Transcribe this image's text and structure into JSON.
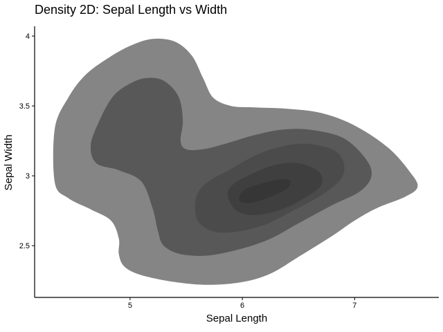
{
  "chart_data": {
    "type": "density2d",
    "title": "Density 2D: Sepal Length vs Width",
    "xlabel": "Sepal Length",
    "ylabel": "Sepal Width",
    "xlim": [
      4.15,
      7.75
    ],
    "ylim": [
      2.13,
      4.07
    ],
    "x_ticks": [
      5,
      6,
      7
    ],
    "y_ticks": [
      2.5,
      3,
      3.5,
      4
    ],
    "grid": false,
    "legend": "none",
    "fill_colors": [
      "#858585",
      "#585858",
      "#4b4b4b",
      "#3f3f3f",
      "#363636"
    ],
    "levels": [
      {
        "level": 1,
        "color": "#858585",
        "points": [
          [
            4.33,
            3.34
          ],
          [
            4.45,
            3.56
          ],
          [
            4.6,
            3.72
          ],
          [
            4.8,
            3.84
          ],
          [
            5.0,
            3.93
          ],
          [
            5.2,
            3.98
          ],
          [
            5.4,
            3.96
          ],
          [
            5.55,
            3.86
          ],
          [
            5.65,
            3.7
          ],
          [
            5.74,
            3.56
          ],
          [
            5.9,
            3.5
          ],
          [
            6.1,
            3.49
          ],
          [
            6.4,
            3.48
          ],
          [
            6.7,
            3.45
          ],
          [
            7.0,
            3.36
          ],
          [
            7.3,
            3.2
          ],
          [
            7.5,
            3.02
          ],
          [
            7.56,
            2.92
          ],
          [
            7.45,
            2.85
          ],
          [
            7.2,
            2.77
          ],
          [
            7.0,
            2.68
          ],
          [
            6.8,
            2.57
          ],
          [
            6.5,
            2.42
          ],
          [
            6.25,
            2.3
          ],
          [
            6.0,
            2.24
          ],
          [
            5.7,
            2.22
          ],
          [
            5.4,
            2.24
          ],
          [
            5.1,
            2.29
          ],
          [
            4.95,
            2.35
          ],
          [
            4.9,
            2.44
          ],
          [
            4.9,
            2.55
          ],
          [
            4.83,
            2.68
          ],
          [
            4.65,
            2.76
          ],
          [
            4.45,
            2.84
          ],
          [
            4.33,
            2.95
          ]
        ]
      },
      {
        "level": 2,
        "color": "#585858",
        "points": [
          [
            4.65,
            3.22
          ],
          [
            4.73,
            3.4
          ],
          [
            4.85,
            3.57
          ],
          [
            5.0,
            3.66
          ],
          [
            5.15,
            3.7
          ],
          [
            5.3,
            3.68
          ],
          [
            5.43,
            3.57
          ],
          [
            5.47,
            3.4
          ],
          [
            5.45,
            3.25
          ],
          [
            5.5,
            3.19
          ],
          [
            5.65,
            3.19
          ],
          [
            5.85,
            3.23
          ],
          [
            6.1,
            3.29
          ],
          [
            6.35,
            3.33
          ],
          [
            6.6,
            3.33
          ],
          [
            6.9,
            3.27
          ],
          [
            7.1,
            3.12
          ],
          [
            7.15,
            3.0
          ],
          [
            7.05,
            2.89
          ],
          [
            6.8,
            2.79
          ],
          [
            6.5,
            2.66
          ],
          [
            6.25,
            2.55
          ],
          [
            6.0,
            2.48
          ],
          [
            5.7,
            2.43
          ],
          [
            5.45,
            2.44
          ],
          [
            5.3,
            2.5
          ],
          [
            5.25,
            2.6
          ],
          [
            5.2,
            2.77
          ],
          [
            5.1,
            2.96
          ],
          [
            4.9,
            3.04
          ],
          [
            4.7,
            3.09
          ]
        ]
      },
      {
        "level": 3,
        "color": "#4b4b4b",
        "points": [
          [
            5.58,
            2.75
          ],
          [
            5.6,
            2.87
          ],
          [
            5.7,
            2.96
          ],
          [
            5.9,
            3.05
          ],
          [
            6.1,
            3.14
          ],
          [
            6.3,
            3.2
          ],
          [
            6.55,
            3.23
          ],
          [
            6.8,
            3.19
          ],
          [
            6.9,
            3.1
          ],
          [
            6.88,
            2.98
          ],
          [
            6.7,
            2.86
          ],
          [
            6.45,
            2.75
          ],
          [
            6.2,
            2.65
          ],
          [
            5.95,
            2.6
          ],
          [
            5.75,
            2.6
          ],
          [
            5.62,
            2.66
          ]
        ]
      },
      {
        "level": 4,
        "color": "#3f3f3f",
        "points": [
          [
            5.87,
            2.86
          ],
          [
            5.92,
            2.94
          ],
          [
            6.1,
            3.02
          ],
          [
            6.3,
            3.08
          ],
          [
            6.5,
            3.09
          ],
          [
            6.68,
            3.03
          ],
          [
            6.7,
            2.93
          ],
          [
            6.55,
            2.84
          ],
          [
            6.35,
            2.76
          ],
          [
            6.12,
            2.72
          ],
          [
            5.95,
            2.75
          ]
        ]
      },
      {
        "level": 5,
        "color": "#363636",
        "points": [
          [
            5.97,
            2.84
          ],
          [
            6.02,
            2.9
          ],
          [
            6.15,
            2.94
          ],
          [
            6.3,
            2.97
          ],
          [
            6.42,
            2.97
          ],
          [
            6.4,
            2.91
          ],
          [
            6.25,
            2.85
          ],
          [
            6.1,
            2.81
          ],
          [
            6.0,
            2.81
          ]
        ]
      }
    ]
  }
}
